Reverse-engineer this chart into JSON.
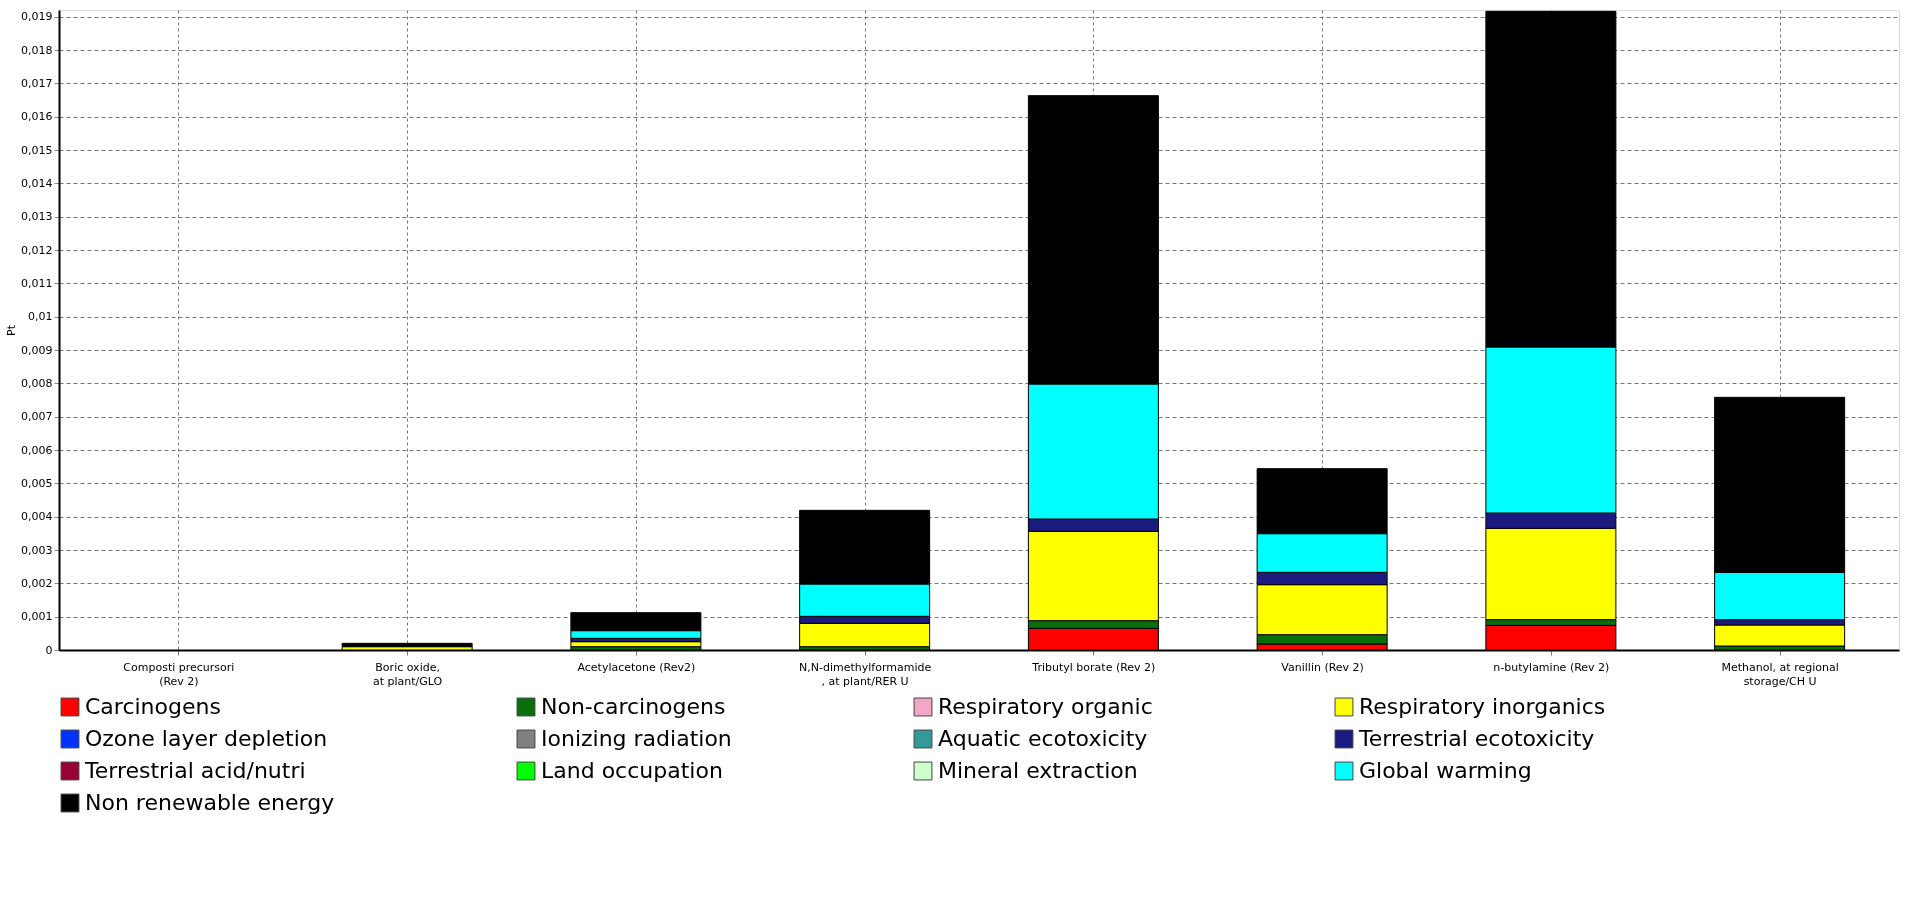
{
  "chart_data": {
    "type": "bar",
    "stacked": true,
    "ylabel": "Pt",
    "grid": true,
    "legend": "bottom",
    "categories": [
      "Composti precursori\n(Rev 2)",
      "Boric oxide,\nat plant/GLO",
      "Acetylacetone (Rev2)",
      "N,N-dimethylformamide\n, at plant/RER U",
      "Tributyl borate (Rev 2)",
      "Vanillin (Rev 2)",
      "n-butylamine (Rev 2)",
      "Methanol, at regional\nstorage/CH U"
    ],
    "ylim": [
      0,
      0.0192
    ],
    "yticks": [
      0,
      {
        "value": 0.001,
        "label": "0,001"
      },
      {
        "value": 0.002,
        "label": "0,002"
      },
      {
        "value": 0.003,
        "label": "0,003"
      },
      {
        "value": 0.004,
        "label": "0,004"
      },
      {
        "value": 0.005,
        "label": "0,005"
      },
      {
        "value": 0.006,
        "label": "0,006"
      },
      {
        "value": 0.007,
        "label": "0,007"
      },
      {
        "value": 0.008,
        "label": "0,008"
      },
      {
        "value": 0.009,
        "label": "0,009"
      },
      {
        "value": 0.01,
        "label": "0,01"
      },
      {
        "value": 0.011,
        "label": "0,011"
      },
      {
        "value": 0.012,
        "label": "0,012"
      },
      {
        "value": 0.013,
        "label": "0,013"
      },
      {
        "value": 0.014,
        "label": "0,014"
      },
      {
        "value": 0.015,
        "label": "0,015"
      },
      {
        "value": 0.016,
        "label": "0,016"
      },
      {
        "value": 0.017,
        "label": "0,017"
      },
      {
        "value": 0.018,
        "label": "0,018"
      },
      {
        "value": 0.019,
        "label": "0,019"
      }
    ],
    "series": [
      {
        "name": "Carcinogens",
        "color": "#ff0000",
        "values": [
          0,
          0,
          0,
          0,
          0.00065,
          0.00018,
          0.00074,
          0
        ]
      },
      {
        "name": "Non-carcinogens",
        "color": "#0a6e0a",
        "values": [
          0,
          0,
          0.0001,
          0.0001,
          0.00023,
          0.00028,
          0.00017,
          0.00012
        ]
      },
      {
        "name": "Respiratory organic",
        "color": "#f4a6c8",
        "values": [
          0,
          0,
          0,
          0,
          0,
          0,
          0,
          0
        ]
      },
      {
        "name": "Respiratory inorganics",
        "color": "#ffff00",
        "values": [
          0,
          0.0001,
          0.00015,
          0.0007,
          0.00268,
          0.0015,
          0.00274,
          0.00063
        ]
      },
      {
        "name": "Ozone layer depletion",
        "color": "#0033ff",
        "values": [
          0,
          0,
          0,
          0,
          0,
          0,
          0,
          0
        ]
      },
      {
        "name": "Ionizing radiation",
        "color": "#808080",
        "values": [
          0,
          0,
          0,
          0,
          0,
          0,
          0,
          0
        ]
      },
      {
        "name": "Aquatic ecotoxicity",
        "color": "#339999",
        "values": [
          0,
          0,
          0,
          0,
          0,
          0,
          0,
          0
        ]
      },
      {
        "name": "Terrestrial ecotoxicity",
        "color": "#1a1a80",
        "values": [
          0,
          0,
          0.0001,
          0.00021,
          0.00037,
          0.00037,
          0.00046,
          0.00016
        ]
      },
      {
        "name": "Terrestrial acid/nutri",
        "color": "#990033",
        "values": [
          0,
          0,
          0,
          0,
          0,
          0,
          0,
          0
        ]
      },
      {
        "name": "Land occupation",
        "color": "#00ff00",
        "values": [
          0,
          0,
          0,
          0,
          0,
          0,
          0,
          0
        ]
      },
      {
        "name": "Mineral extraction",
        "color": "#ccffcc",
        "values": [
          0,
          0,
          0,
          0,
          0,
          0,
          0,
          0
        ]
      },
      {
        "name": "Global warming",
        "color": "#00ffff",
        "values": [
          0,
          0,
          0.00023,
          0.00097,
          0.00405,
          0.00116,
          0.00498,
          0.00142
        ]
      },
      {
        "name": "Non renewable energy",
        "color": "#000000",
        "values": [
          0,
          0.0001,
          0.00054,
          0.00221,
          0.00865,
          0.00195,
          0.01007,
          0.00525
        ]
      }
    ]
  }
}
